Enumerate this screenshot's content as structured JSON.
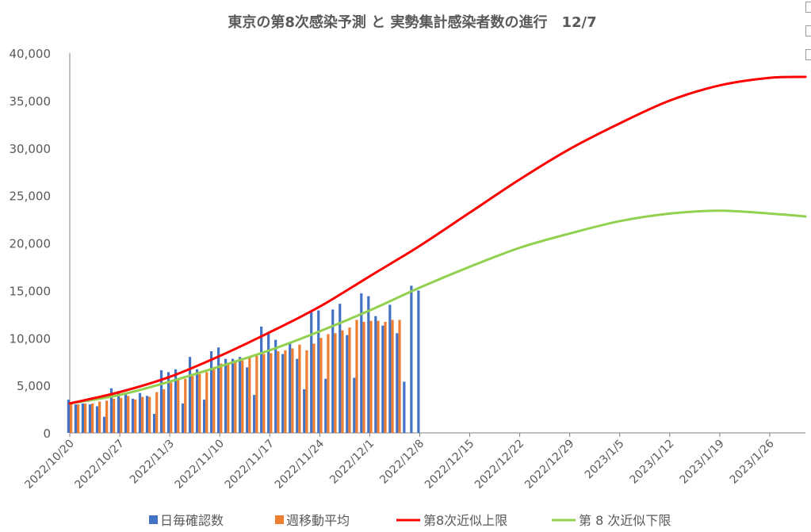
{
  "chart_data": {
    "type": "bar",
    "title": "東京の第8次感染予測 と 実勢集計感染者数の進行　12/7",
    "xlabel": "",
    "ylabel": "",
    "ylim": [
      0,
      40000
    ],
    "yticks": [
      0,
      5000,
      10000,
      15000,
      20000,
      25000,
      30000,
      35000,
      40000
    ],
    "ytick_labels": [
      "0",
      "5,000",
      "10,000",
      "15,000",
      "20,000",
      "25,000",
      "30,000",
      "35,000",
      "40,000"
    ],
    "x_start": "2022/10/20",
    "x_end": "2023/1/31",
    "xtick_labels": [
      "2022/10/20",
      "2022/10/27",
      "2022/11/3",
      "2022/11/10",
      "2022/11/17",
      "2022/11/24",
      "2022/12/1",
      "2022/12/8",
      "2022/12/15",
      "2022/12/22",
      "2022/12/29",
      "2023/1/5",
      "2023/1/12",
      "2023/1/19",
      "2023/1/26"
    ],
    "legend_position": "bottom",
    "grid": false,
    "series": [
      {
        "name": "日毎確認数",
        "kind": "bar",
        "color": "#4472C4",
        "start": "2022/10/20",
        "values": [
          3500,
          3000,
          3100,
          3000,
          2800,
          1700,
          4700,
          4400,
          4200,
          3600,
          4200,
          3900,
          2000,
          6600,
          6400,
          6700,
          3100,
          8000,
          6700,
          3500,
          8600,
          9000,
          7800,
          7800,
          8000,
          6900,
          4000,
          11200,
          10500,
          9800,
          8300,
          9500,
          7800,
          4600,
          12700,
          12900,
          5700,
          13000,
          13600,
          10300,
          5800,
          14700,
          14400,
          12300,
          11300,
          13500,
          10500,
          5400,
          15500,
          15000
        ]
      },
      {
        "name": "週移動平均",
        "kind": "bar",
        "color": "#ED7D31",
        "start": "2022/10/20",
        "values": [
          3000,
          3000,
          3100,
          3100,
          3300,
          3400,
          3600,
          3700,
          3900,
          3500,
          3800,
          3800,
          4300,
          4600,
          5300,
          5600,
          5700,
          6000,
          6200,
          6400,
          6900,
          7300,
          7400,
          7600,
          7600,
          7900,
          8100,
          8300,
          8400,
          8600,
          8700,
          8900,
          9300,
          8700,
          9400,
          10000,
          10400,
          10500,
          10800,
          11100,
          11900,
          11700,
          11800,
          11800,
          11700,
          11900,
          11900
        ]
      },
      {
        "name": "第8次近似上限",
        "kind": "line",
        "color": "#FF0000",
        "x": [
          "2022/10/20",
          "2022/10/27",
          "2022/11/3",
          "2022/11/10",
          "2022/11/17",
          "2022/11/24",
          "2022/12/1",
          "2022/12/8",
          "2022/12/15",
          "2022/12/22",
          "2022/12/29",
          "2023/1/5",
          "2023/1/12",
          "2023/1/19",
          "2023/1/26",
          "2023/1/31"
        ],
        "values": [
          3100,
          4300,
          5900,
          8100,
          10600,
          13300,
          16500,
          19700,
          23200,
          26700,
          29900,
          32600,
          35000,
          36600,
          37400,
          37500
        ]
      },
      {
        "name": "第 8 次近似下限",
        "kind": "line",
        "color": "#92D050",
        "x": [
          "2022/10/20",
          "2022/10/27",
          "2022/11/3",
          "2022/11/10",
          "2022/11/17",
          "2022/11/24",
          "2022/12/1",
          "2022/12/8",
          "2022/12/15",
          "2022/12/22",
          "2022/12/29",
          "2023/1/5",
          "2023/1/12",
          "2023/1/19",
          "2023/1/26",
          "2023/1/31"
        ],
        "values": [
          3100,
          4000,
          5400,
          7000,
          8700,
          10700,
          12900,
          15300,
          17500,
          19500,
          21000,
          22300,
          23100,
          23400,
          23100,
          22800
        ]
      }
    ]
  }
}
